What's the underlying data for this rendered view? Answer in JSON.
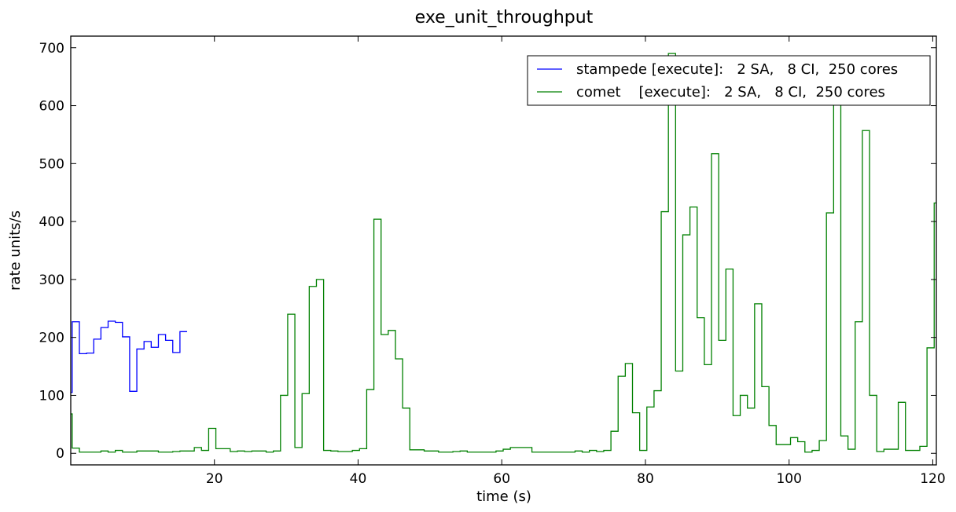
{
  "chart_data": {
    "type": "line",
    "step": "post",
    "title": "exe_unit_throughput",
    "xlabel": "time (s)",
    "ylabel": "rate units/s",
    "xlim": [
      0,
      120.5
    ],
    "ylim": [
      -20,
      720
    ],
    "xticks": [
      20,
      40,
      60,
      80,
      100,
      120
    ],
    "xtick_labels": [
      "20",
      "40",
      "60",
      "80",
      "100",
      "120"
    ],
    "yticks": [
      0,
      100,
      200,
      300,
      400,
      500,
      600,
      700
    ],
    "ytick_labels": [
      "0",
      "100",
      "200",
      "300",
      "400",
      "500",
      "600",
      "700"
    ],
    "grid": false,
    "legend_position": "top-right",
    "series": [
      {
        "name": "stampede [execute]:   2 SA,   8 CI,  250 cores",
        "color": "#0000ff",
        "x": [
          0,
          0.2,
          1.2,
          2.2,
          3.2,
          4.2,
          5.2,
          6.2,
          7.2,
          8.2,
          9.2,
          10.2,
          11.2,
          12.2,
          13.2,
          14.2,
          15.2,
          16.2
        ],
        "y": [
          105,
          227,
          172,
          173,
          197,
          217,
          228,
          226,
          201,
          107,
          180,
          193,
          183,
          205,
          195,
          174,
          210,
          210
        ]
      },
      {
        "name": "comet    [execute]:   2 SA,   8 CI,  250 cores",
        "color": "#008000",
        "x": [
          0,
          0.2,
          1.2,
          2.2,
          3.2,
          4.2,
          5.2,
          6.2,
          7.2,
          8.2,
          9.2,
          10.2,
          11.2,
          12.2,
          13.2,
          14.2,
          15.2,
          16.2,
          17.2,
          18.2,
          19.2,
          20.2,
          21.2,
          22.2,
          23.2,
          24.2,
          25.2,
          26.2,
          27.2,
          28.2,
          29.2,
          30.2,
          31.2,
          32.2,
          33.2,
          34.2,
          35.2,
          36.2,
          37.2,
          38.2,
          39.2,
          40.2,
          41.2,
          42.2,
          43.2,
          44.2,
          45.2,
          46.2,
          47.2,
          48.2,
          49.2,
          50.2,
          51.2,
          52.2,
          53.2,
          54.2,
          55.2,
          56.2,
          57.2,
          58.2,
          59.2,
          60.2,
          61.2,
          62.2,
          63.2,
          64.2,
          65.2,
          66.2,
          67.2,
          68.2,
          69.2,
          70.2,
          71.2,
          72.2,
          73.2,
          74.2,
          75.2,
          76.2,
          77.2,
          78.2,
          79.2,
          80.2,
          81.2,
          82.2,
          83.2,
          84.2,
          85.2,
          86.2,
          87.2,
          88.2,
          89.2,
          90.2,
          91.2,
          92.2,
          93.2,
          94.2,
          95.2,
          96.2,
          97.2,
          98.2,
          99.2,
          100.2,
          101.2,
          102.2,
          103.2,
          104.2,
          105.2,
          106.2,
          107.2,
          108.2,
          109.2,
          110.2,
          111.2,
          112.2,
          113.2,
          114.2,
          115.2,
          116.2,
          117.2,
          118.2,
          119.2,
          120.2
        ],
        "y": [
          68,
          9,
          2,
          2,
          2,
          4,
          2,
          5,
          2,
          2,
          4,
          4,
          4,
          2,
          2,
          3,
          4,
          4,
          10,
          5,
          43,
          8,
          8,
          3,
          4,
          3,
          4,
          4,
          2,
          4,
          100,
          240,
          10,
          103,
          288,
          300,
          5,
          4,
          3,
          3,
          5,
          8,
          110,
          404,
          205,
          212,
          163,
          78,
          6,
          6,
          4,
          4,
          2,
          2,
          3,
          4,
          2,
          2,
          2,
          2,
          4,
          7,
          10,
          10,
          10,
          2,
          2,
          2,
          2,
          2,
          2,
          4,
          2,
          5,
          3,
          5,
          38,
          133,
          155,
          70,
          5,
          80,
          108,
          417,
          690,
          142,
          377,
          425,
          234,
          153,
          517,
          195,
          318,
          65,
          100,
          78,
          258,
          115,
          48,
          15,
          15,
          27,
          20,
          2,
          5,
          22,
          415,
          650,
          30,
          7,
          227,
          557,
          100,
          3,
          7,
          7,
          88,
          5,
          5,
          12,
          182,
          432
        ]
      }
    ]
  }
}
